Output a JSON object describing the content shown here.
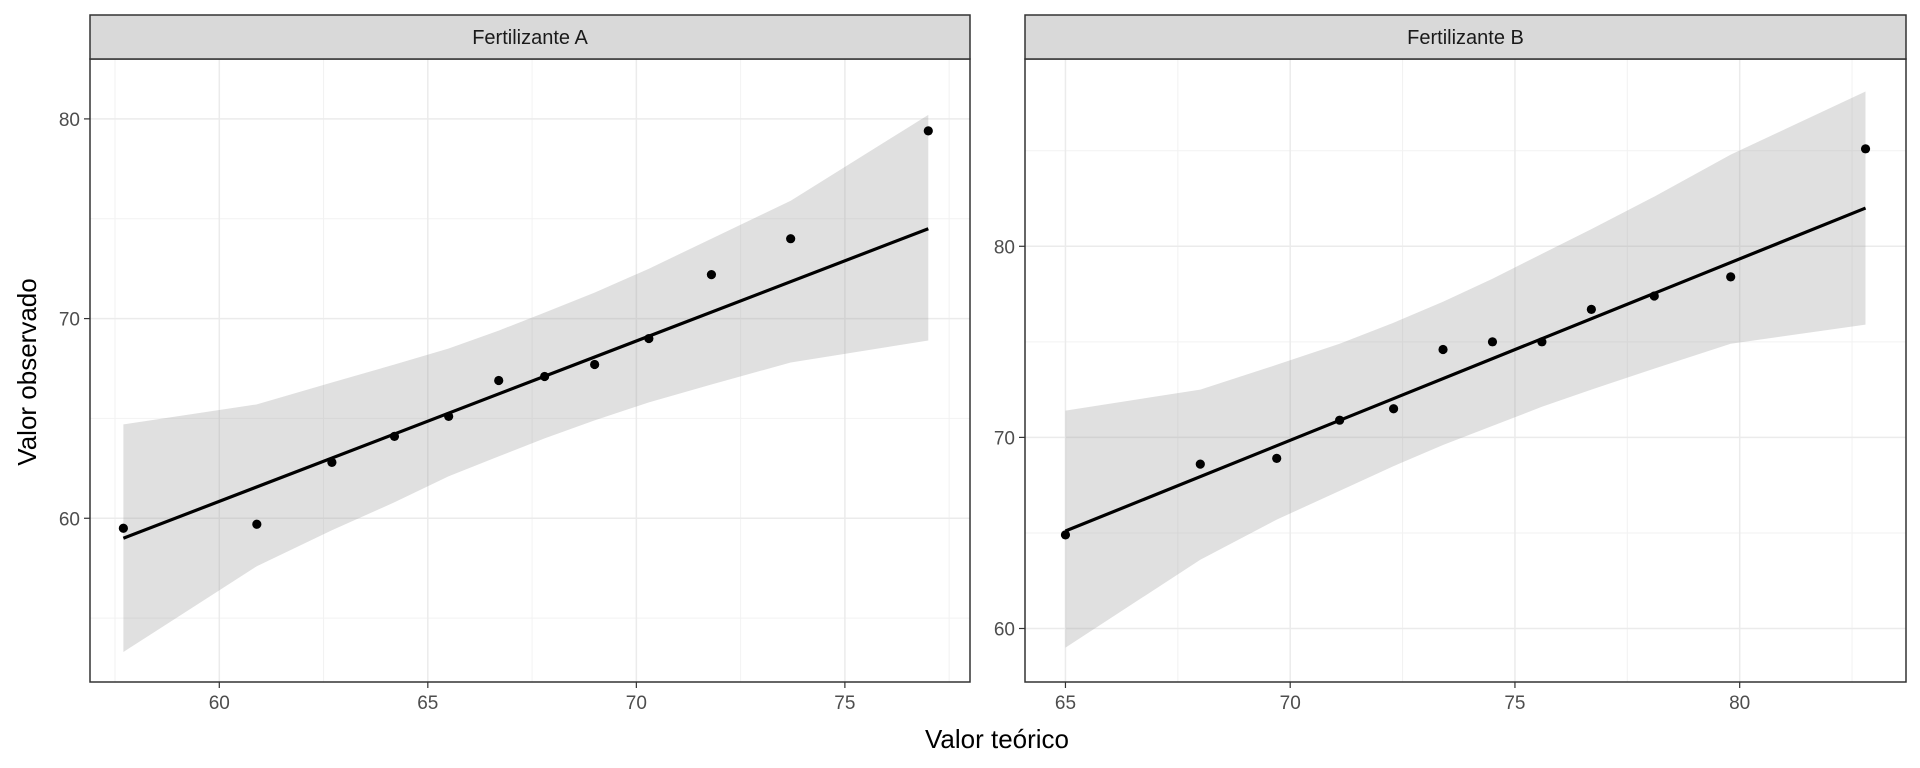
{
  "chart_data": {
    "type": "scatter",
    "xlabel": "Valor teórico",
    "ylabel": "Valor observado",
    "grid": true,
    "panels": [
      {
        "strip_label": "Fertilizante A",
        "xlim": [
          56.9,
          78.0
        ],
        "ylim": [
          51.8,
          83.0
        ],
        "x_ticks": [
          60,
          65,
          70,
          75
        ],
        "y_ticks": [
          60,
          70,
          80
        ],
        "points": [
          {
            "x": 57.7,
            "y": 59.5
          },
          {
            "x": 60.9,
            "y": 59.7
          },
          {
            "x": 62.7,
            "y": 62.8
          },
          {
            "x": 64.2,
            "y": 64.1
          },
          {
            "x": 65.5,
            "y": 65.1
          },
          {
            "x": 66.7,
            "y": 66.9
          },
          {
            "x": 67.8,
            "y": 67.1
          },
          {
            "x": 69.0,
            "y": 67.7
          },
          {
            "x": 70.3,
            "y": 69.0
          },
          {
            "x": 71.8,
            "y": 72.2
          },
          {
            "x": 73.7,
            "y": 74.0
          },
          {
            "x": 77.0,
            "y": 79.4
          }
        ],
        "fit": {
          "x": [
            57.7,
            77.0
          ],
          "y": [
            59.0,
            74.5
          ]
        },
        "band": {
          "x": [
            57.7,
            60.9,
            62.7,
            64.2,
            65.5,
            66.7,
            67.8,
            69.0,
            70.3,
            71.8,
            73.7,
            77.0
          ],
          "lower": [
            53.3,
            57.6,
            59.4,
            60.8,
            62.1,
            63.1,
            64.0,
            64.9,
            65.8,
            66.7,
            67.8,
            68.9
          ],
          "upper": [
            64.7,
            65.7,
            66.8,
            67.7,
            68.5,
            69.4,
            70.3,
            71.3,
            72.5,
            74.0,
            75.9,
            80.2
          ]
        }
      },
      {
        "strip_label": "Fertilizante B",
        "xlim": [
          64.1,
          83.7
        ],
        "ylim": [
          57.2,
          89.8
        ],
        "x_ticks": [
          65,
          70,
          75,
          80
        ],
        "y_ticks": [
          60,
          70,
          80
        ],
        "points": [
          {
            "x": 65.0,
            "y": 64.9
          },
          {
            "x": 68.0,
            "y": 68.6
          },
          {
            "x": 69.7,
            "y": 68.9
          },
          {
            "x": 71.1,
            "y": 70.9
          },
          {
            "x": 72.3,
            "y": 71.5
          },
          {
            "x": 73.4,
            "y": 74.6
          },
          {
            "x": 74.5,
            "y": 75.0
          },
          {
            "x": 75.6,
            "y": 75.0
          },
          {
            "x": 76.7,
            "y": 76.7
          },
          {
            "x": 78.1,
            "y": 77.4
          },
          {
            "x": 79.8,
            "y": 78.4
          },
          {
            "x": 82.8,
            "y": 85.1
          }
        ],
        "fit": {
          "x": [
            65.0,
            82.8
          ],
          "y": [
            65.1,
            82.0
          ]
        },
        "band": {
          "x": [
            65.0,
            68.0,
            69.7,
            71.1,
            72.3,
            73.4,
            74.5,
            75.6,
            76.7,
            78.1,
            79.8,
            82.8
          ],
          "lower": [
            59.0,
            63.6,
            65.7,
            67.2,
            68.5,
            69.6,
            70.6,
            71.6,
            72.5,
            73.6,
            74.9,
            75.9
          ],
          "upper": [
            71.4,
            72.5,
            73.8,
            74.9,
            76.0,
            77.1,
            78.3,
            79.6,
            80.9,
            82.6,
            84.8,
            88.1
          ]
        }
      }
    ]
  }
}
